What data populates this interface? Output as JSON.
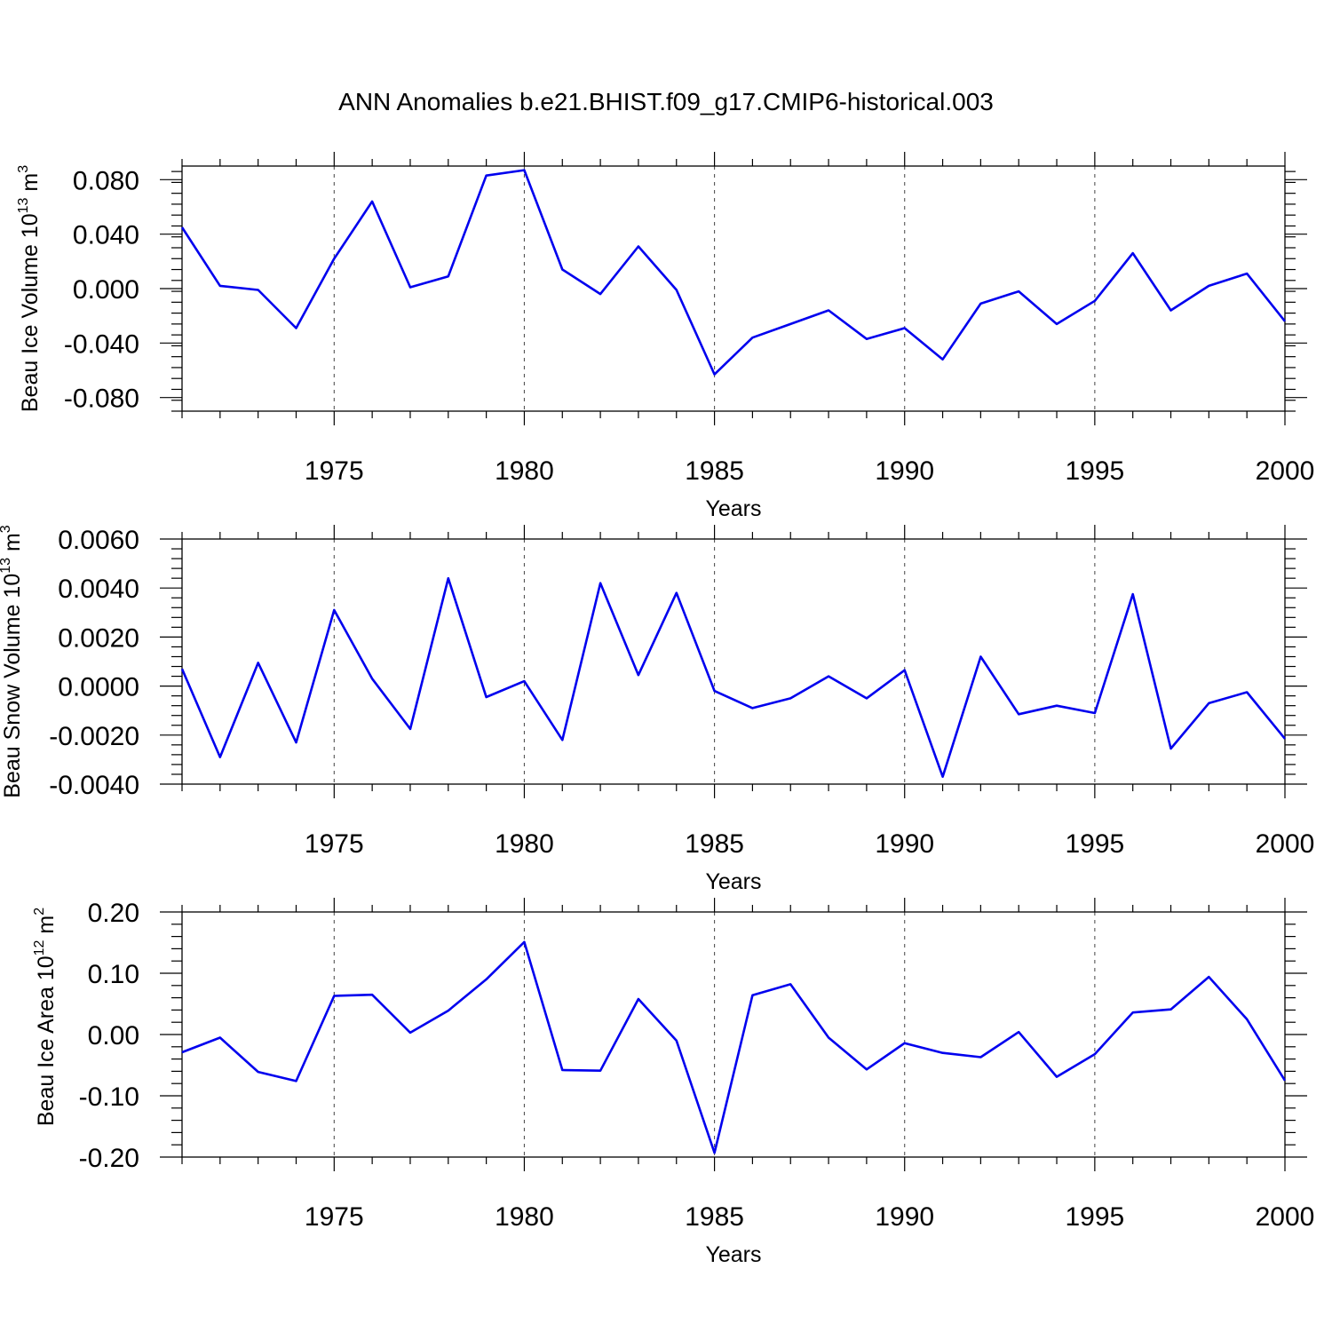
{
  "chart_data": {
    "title": "ANN Anomalies b.e21.BHIST.f09_g17.CMIP6-historical.003",
    "type": "line",
    "line_color": "#0000ee",
    "grid_color": "#555555",
    "panels": [
      {
        "name": "ice-volume",
        "ylabel": "Beau Ice Volume 10",
        "ylabel_exp": "13",
        "ylabel_unit": " m",
        "ylabel_unit_exp": "3",
        "xlabel": "Years",
        "xlim": [
          1971,
          2000
        ],
        "ylim": [
          -0.09,
          0.09
        ],
        "yticks": [
          -0.08,
          -0.04,
          0.0,
          0.04,
          0.08
        ],
        "ytick_labels": [
          "-0.080",
          "-0.040",
          "0.000",
          "0.040",
          "0.080"
        ],
        "yminor_step": 0.008,
        "xticks": [
          1975,
          1980,
          1985,
          1990,
          1995,
          2000
        ],
        "xtick_labels": [
          "1975",
          "1980",
          "1985",
          "1990",
          "1995",
          "2000"
        ],
        "x": [
          1971,
          1972,
          1973,
          1974,
          1975,
          1976,
          1977,
          1978,
          1979,
          1980,
          1981,
          1982,
          1983,
          1984,
          1985,
          1986,
          1987,
          1988,
          1989,
          1990,
          1991,
          1992,
          1993,
          1994,
          1995,
          1996,
          1997,
          1998,
          1999,
          2000
        ],
        "y": [
          0.045,
          0.002,
          -0.001,
          -0.029,
          0.022,
          0.064,
          0.001,
          0.009,
          0.083,
          0.087,
          0.014,
          -0.004,
          0.031,
          -0.001,
          -0.063,
          -0.036,
          -0.026,
          -0.016,
          -0.037,
          -0.029,
          -0.052,
          -0.011,
          -0.002,
          -0.026,
          -0.009,
          0.026,
          -0.016,
          0.002,
          0.011,
          -0.024
        ]
      },
      {
        "name": "snow-volume",
        "ylabel": "Beau Snow Volume 10",
        "ylabel_exp": "13",
        "ylabel_unit": " m",
        "ylabel_unit_exp": "3",
        "xlabel": "Years",
        "xlim": [
          1971,
          2000
        ],
        "ylim": [
          -0.004,
          0.006
        ],
        "yticks": [
          -0.004,
          -0.002,
          0.0,
          0.002,
          0.004,
          0.006
        ],
        "ytick_labels": [
          "-0.0040",
          "-0.0020",
          "0.0000",
          "0.0020",
          "0.0040",
          "0.0060"
        ],
        "yminor_step": 0.0004,
        "xticks": [
          1975,
          1980,
          1985,
          1990,
          1995,
          2000
        ],
        "xtick_labels": [
          "1975",
          "1980",
          "1985",
          "1990",
          "1995",
          "2000"
        ],
        "x": [
          1971,
          1972,
          1973,
          1974,
          1975,
          1976,
          1977,
          1978,
          1979,
          1980,
          1981,
          1982,
          1983,
          1984,
          1985,
          1986,
          1987,
          1988,
          1989,
          1990,
          1991,
          1992,
          1993,
          1994,
          1995,
          1996,
          1997,
          1998,
          1999,
          2000
        ],
        "y": [
          0.0007,
          -0.0029,
          0.00095,
          -0.0023,
          0.0031,
          0.0003,
          -0.00175,
          0.0044,
          -0.00045,
          0.0002,
          -0.0022,
          0.0042,
          0.00045,
          0.0038,
          -0.0002,
          -0.0009,
          -0.0005,
          0.0004,
          -0.0005,
          0.00065,
          -0.0037,
          0.0012,
          -0.00115,
          -0.0008,
          -0.0011,
          0.00375,
          -0.00255,
          -0.0007,
          -0.00025,
          -0.00215
        ]
      },
      {
        "name": "ice-area",
        "ylabel": "Beau Ice Area 10",
        "ylabel_exp": "12",
        "ylabel_unit": " m",
        "ylabel_unit_exp": "2",
        "xlabel": "Years",
        "xlim": [
          1971,
          2000
        ],
        "ylim": [
          -0.2,
          0.2
        ],
        "yticks": [
          -0.2,
          -0.1,
          0.0,
          0.1,
          0.2
        ],
        "ytick_labels": [
          "-0.20",
          "-0.10",
          "0.00",
          "0.10",
          "0.20"
        ],
        "yminor_step": 0.02,
        "xticks": [
          1975,
          1980,
          1985,
          1990,
          1995,
          2000
        ],
        "xtick_labels": [
          "1975",
          "1980",
          "1985",
          "1990",
          "1995",
          "2000"
        ],
        "x": [
          1971,
          1972,
          1973,
          1974,
          1975,
          1976,
          1977,
          1978,
          1979,
          1980,
          1981,
          1982,
          1983,
          1984,
          1985,
          1986,
          1987,
          1988,
          1989,
          1990,
          1991,
          1992,
          1993,
          1994,
          1995,
          1996,
          1997,
          1998,
          1999,
          2000
        ],
        "y": [
          -0.029,
          -0.005,
          -0.061,
          -0.076,
          0.063,
          0.065,
          0.003,
          0.039,
          0.09,
          0.151,
          -0.058,
          -0.059,
          0.058,
          -0.01,
          -0.193,
          0.064,
          0.082,
          -0.005,
          -0.057,
          -0.014,
          -0.03,
          -0.037,
          0.004,
          -0.069,
          -0.032,
          0.036,
          0.041,
          0.094,
          0.025,
          -0.075
        ]
      }
    ]
  }
}
